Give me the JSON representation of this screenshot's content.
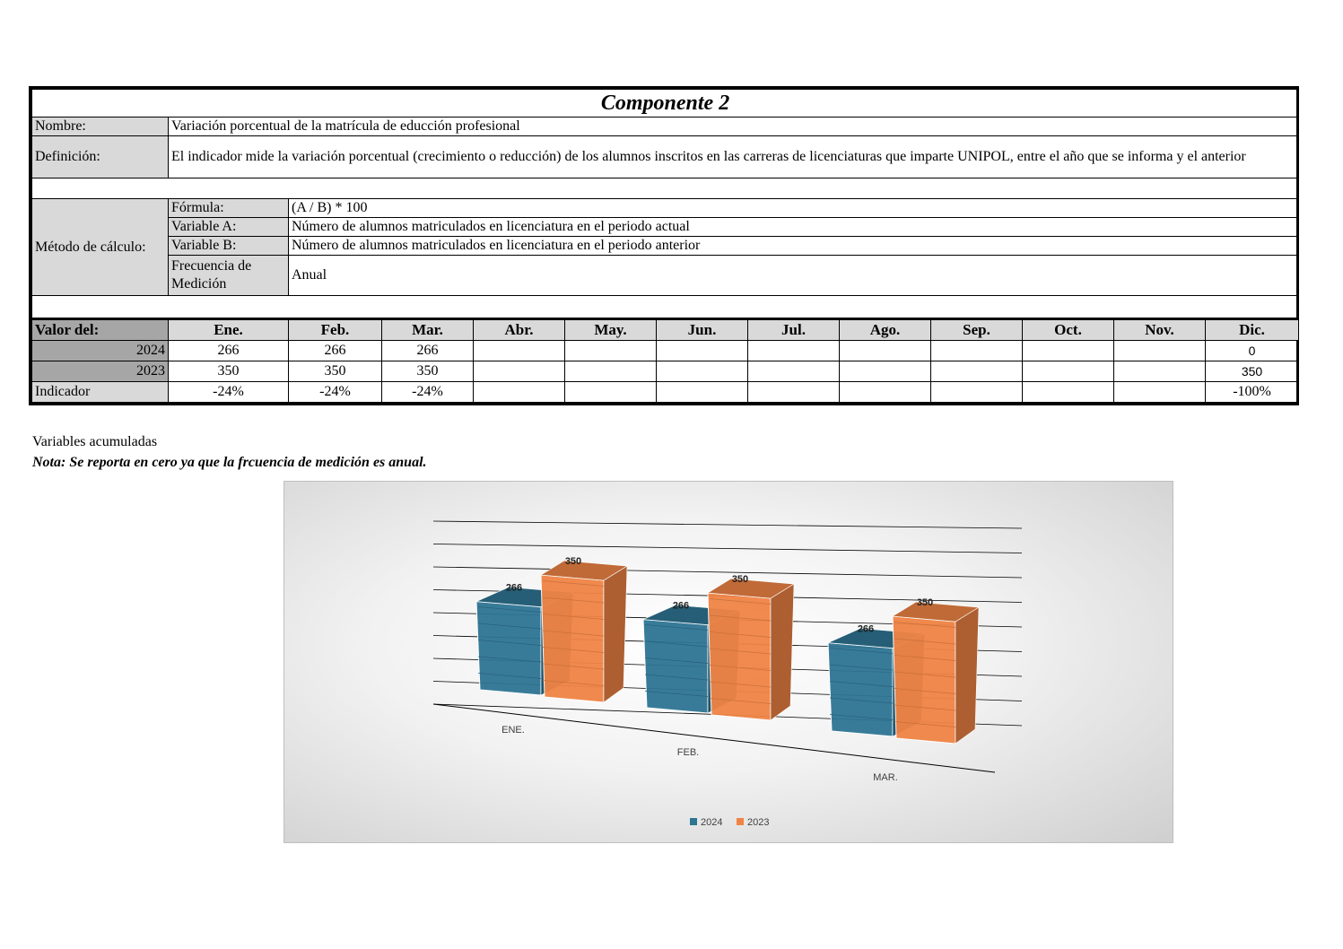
{
  "title": "Componente 2",
  "nombre": {
    "label": "Nombre:",
    "value": "Variación porcentual de la matrícula de educción profesional"
  },
  "definicion": {
    "label": "Definición:",
    "value": "El indicador mide la variación porcentual (crecimiento o reducción) de los alumnos inscritos en las carreras de licenciaturas que imparte UNIPOL, entre el año que se informa y el anterior"
  },
  "metodo": {
    "label": "Método de cálculo:",
    "formula": {
      "label": "Fórmula:",
      "value": "(A / B) * 100"
    },
    "variable_a": {
      "label": "Variable A:",
      "value": "Número de alumnos matriculados en licenciatura en el periodo actual"
    },
    "variable_b": {
      "label": "Variable B:",
      "value": "Número de alumnos matriculados en licenciatura en el periodo anterior"
    },
    "frecuencia": {
      "label": "Frecuencia de Medición",
      "value": "Anual"
    }
  },
  "valores": {
    "header_label": "Valor del:",
    "months": [
      "Ene.",
      "Feb.",
      "Mar.",
      "Abr.",
      "May.",
      "Jun.",
      "Jul.",
      "Ago.",
      "Sep.",
      "Oct.",
      "Nov.",
      "Dic."
    ],
    "rows": [
      {
        "label": "2024",
        "values": [
          "266",
          "266",
          "266",
          "",
          "",
          "",
          "",
          "",
          "",
          "",
          "",
          "0"
        ]
      },
      {
        "label": "2023",
        "values": [
          "350",
          "350",
          "350",
          "",
          "",
          "",
          "",
          "",
          "",
          "",
          "",
          "350"
        ]
      },
      {
        "label": "Indicador",
        "values": [
          "-24%",
          "-24%",
          "-24%",
          "",
          "",
          "",
          "",
          "",
          "",
          "",
          "",
          "-100%"
        ]
      }
    ]
  },
  "notes": {
    "acumuladas": "Variables acumuladas",
    "nota": "Nota: Se reporta en cero ya que la frcuencia de medición es anual."
  },
  "chart_data": {
    "type": "bar",
    "categories": [
      "ENE.",
      "FEB.",
      "MAR."
    ],
    "series": [
      {
        "name": "2024",
        "values": [
          266,
          266,
          266
        ],
        "color": "#2e7594"
      },
      {
        "name": "2023",
        "values": [
          350,
          350,
          350
        ],
        "color": "#f08445"
      }
    ],
    "ylim": [
      0,
      400
    ],
    "grid": true,
    "legend": "bottom",
    "style": "3d-clustered-column"
  }
}
